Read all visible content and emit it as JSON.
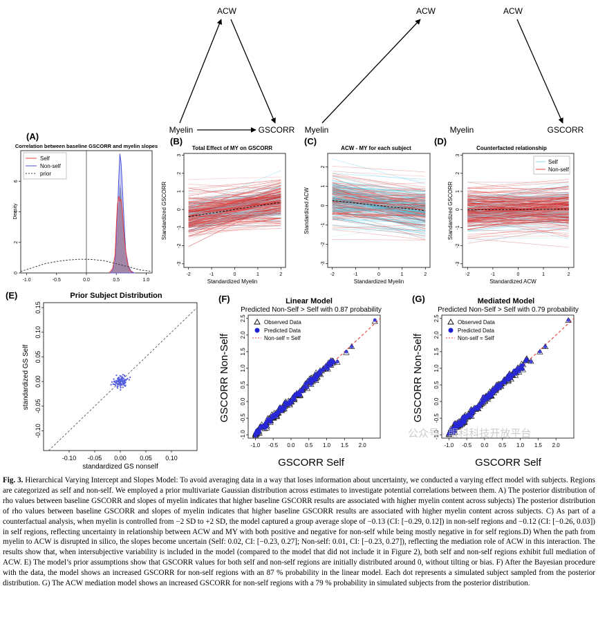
{
  "figure": {
    "top_diagrams": [
      {
        "top": "ACW",
        "left": "Myelin",
        "right": "GSCORR"
      },
      {
        "top": "ACW",
        "left": "Myelin"
      },
      {
        "top": "ACW",
        "left": "Myelin",
        "right": "GSCORR"
      }
    ],
    "watermark": "公众号 · 眼科科技开放平台"
  },
  "chart_data": [
    {
      "id": "A",
      "type": "area",
      "panel_label": "(A)",
      "title": "Correlation between baseline GSCORR and myelin slopes",
      "xlabel": "",
      "ylabel": "Density",
      "xlim": [
        -1.1,
        1.1
      ],
      "ylim": [
        0,
        8
      ],
      "x_ticks": [
        "-1.0",
        "-0.5",
        "0.0",
        "0.5",
        "1.0"
      ],
      "y_ticks": [
        "0",
        "2",
        "4",
        "6"
      ],
      "legend": [
        "Self",
        "Non-self",
        "prior"
      ],
      "colors": {
        "Self": "#e8403c",
        "Non-self": "#4a52d8",
        "prior": "#333333"
      },
      "series": [
        {
          "name": "Self",
          "x": [
            0.38,
            0.44,
            0.48,
            0.5,
            0.52,
            0.54,
            0.56,
            0.58,
            0.6,
            0.62,
            0.64,
            0.68,
            0.72,
            0.78
          ],
          "y": [
            0,
            0.3,
            1.2,
            3.0,
            4.5,
            5.0,
            4.7,
            4.8,
            4.2,
            3.0,
            2.0,
            0.8,
            0.2,
            0
          ]
        },
        {
          "name": "Non-self",
          "x": [
            0.4,
            0.44,
            0.48,
            0.5,
            0.52,
            0.54,
            0.56,
            0.58,
            0.6,
            0.62,
            0.64,
            0.66,
            0.7,
            0.74,
            0.8
          ],
          "y": [
            0,
            0.2,
            0.8,
            2.0,
            3.8,
            6.0,
            7.8,
            7.2,
            5.8,
            4.2,
            2.6,
            1.4,
            0.5,
            0.15,
            0
          ]
        },
        {
          "name": "prior",
          "x": [
            -1.1,
            -0.9,
            -0.7,
            -0.5,
            -0.3,
            -0.1,
            0.1,
            0.3,
            0.5,
            0.7,
            0.9,
            1.1
          ],
          "y": [
            0.1,
            0.35,
            0.6,
            0.75,
            0.85,
            0.9,
            0.88,
            0.8,
            0.6,
            0.4,
            0.2,
            0.1
          ]
        }
      ]
    },
    {
      "id": "B",
      "type": "line",
      "panel_label": "(B)",
      "title": "Total Effect of MY on GSCORR",
      "xlabel": "Standardized Myelin",
      "ylabel": "Standardized GSCORR",
      "xlim": [
        -2.2,
        2.2
      ],
      "ylim": [
        -3.2,
        3.1
      ],
      "x_ticks": [
        "-2",
        "-1",
        "0",
        "1",
        "2"
      ],
      "y_ticks": [
        "-3",
        "-2",
        "-1",
        "0",
        "1",
        "2",
        "3"
      ],
      "mean_intercept": 0.0,
      "mean_slope": 0.2,
      "intercept_sd": 0.45,
      "slope_sd": 0.14
    },
    {
      "id": "C",
      "type": "line",
      "panel_label": "(C)",
      "title": "ACW - MY for each subject",
      "xlabel": "Standardized Myelin",
      "ylabel": "Standardized ACW",
      "xlim": [
        -2.2,
        2.2
      ],
      "ylim": [
        -3.2,
        2.7
      ],
      "x_ticks": [
        "-2",
        "-1",
        "0",
        "1",
        "2"
      ],
      "y_ticks": [
        "-3",
        "-2",
        "-1",
        "0",
        "1",
        "2"
      ],
      "mean_intercept": 0.0,
      "mean_slope": -0.13,
      "intercept_sd": 0.45,
      "slope_sd": 0.12
    },
    {
      "id": "D",
      "type": "line",
      "panel_label": "(D)",
      "title": "Counterfacted relationship",
      "xlabel": "Standardized ACW",
      "ylabel": "Standardized GSCORR",
      "xlim": [
        -2.2,
        2.2
      ],
      "ylim": [
        -3.2,
        3.1
      ],
      "x_ticks": [
        "-2",
        "-1",
        "0",
        "1",
        "2"
      ],
      "y_ticks": [
        "-3",
        "-2",
        "-1",
        "0",
        "1",
        "2",
        "3"
      ],
      "legend": [
        "Self",
        "Non-self"
      ],
      "mean_intercept": 0.0,
      "mean_slope": 0.01,
      "intercept_sd": 0.45,
      "slope_sd": 0.12
    },
    {
      "id": "E",
      "type": "scatter",
      "panel_label": "(E)",
      "title": "Prior Subject Distribution",
      "xlabel": "standardized GS nonself",
      "ylabel": "standardized GS Self",
      "xlim": [
        -0.15,
        0.15
      ],
      "ylim": [
        -0.14,
        0.16
      ],
      "x_ticks": [
        "-0.10",
        "-0.05",
        "0.00",
        "0.05",
        "0.10"
      ],
      "y_ticks": [
        "-0.10",
        "-0.05",
        "0.00",
        "0.05",
        "0.10",
        "0.15"
      ],
      "points_center": [
        0.0,
        0.0
      ],
      "points_sd": [
        0.007,
        0.006
      ],
      "n_points": 120
    },
    {
      "id": "F",
      "type": "scatter",
      "panel_label": "(F)",
      "title": "Linear Model",
      "subtitle": "Predicted Non-Self > Self with 0.87  probability",
      "xlabel": "GSCORR Self",
      "ylabel": "GSCORR Non-Self",
      "xlim": [
        -1.2,
        2.5
      ],
      "ylim": [
        -1.1,
        2.6
      ],
      "x_ticks": [
        "-1.0",
        "-0.5",
        "0.0",
        "0.5",
        "1.0",
        "1.5",
        "2.0"
      ],
      "y_ticks": [
        "-1.0",
        "-0.5",
        "0.0",
        "0.5",
        "1.0",
        "1.5",
        "2.0",
        "2.5"
      ],
      "legend": [
        "Observed Data",
        "Predicted Data",
        "Non-self = Self"
      ],
      "outliers": [
        [
          2.35,
          2.45
        ],
        [
          1.3,
          1.2
        ],
        [
          1.7,
          1.65
        ],
        [
          1.55,
          1.5
        ]
      ]
    },
    {
      "id": "G",
      "type": "scatter",
      "panel_label": "(G)",
      "title": "Mediated Model",
      "subtitle": "Predicted Non-Self > Self with 0.79  probability",
      "xlabel": "GSCORR Self",
      "ylabel": "GSCORR Non-Self",
      "xlim": [
        -1.2,
        2.5
      ],
      "ylim": [
        -1.1,
        2.6
      ],
      "x_ticks": [
        "-1.0",
        "-0.5",
        "0.0",
        "0.5",
        "1.0",
        "1.5",
        "2.0"
      ],
      "y_ticks": [
        "-1.0",
        "-0.5",
        "0.0",
        "0.5",
        "1.0",
        "1.5",
        "2.0",
        "2.5"
      ],
      "legend": [
        "Observed Data",
        "Predicted Data",
        "Non-self = Self"
      ],
      "outliers": [
        [
          2.35,
          2.45
        ],
        [
          1.3,
          1.2
        ],
        [
          1.7,
          1.65
        ],
        [
          1.55,
          1.5
        ]
      ]
    }
  ],
  "caption": {
    "label": "Fig. 3.",
    "text": "Hierarchical Varying Intercept and Slopes Model: To avoid averaging data in a way that loses information about uncertainty, we conducted a varying effect model with subjects. Regions are categorized as self and non-self. We employed a prior multivariate Gaussian distribution across estimates to investigate potential correlations between them. A) The posterior distribution of rho values between baseline GSCORR and slopes of myelin indicates that higher baseline GSCORR results are associated with higher myelin content across subjects) The posterior distribution of rho values between baseline GSCORR and slopes of myelin indicates that higher baseline GSCORR results are associated with higher myelin content across subjects. C) As part of a counterfactual analysis, when myelin is controlled from −2 SD to +2 SD, the model captured a group average slope of −0.13 (CI: [−0.29, 0.12]) in non-self regions and −0.12 (CI: [−0.26, 0.03]) in self regions, reflecting uncertainty in relationship between ACW and MY with both positive and negative for non-self while being mostly negative in for self regions.D) When the path from myelin to ACW is disrupted in silico, the slopes become uncertain (Self: 0.02, CI: [−0.23, 0.27]; Non-self: 0.01, CI: [−0.23, 0.27]), reflecting the mediation role of ACW in this interaction. The results show that, when intersubjective variability is included in the model (compared to the model that did not include it in Figure 2), both self and non-self regions exhibit full mediation of ACW. E) The model’s prior assumptions show that GSCORR values for both self and non-self regions are initially distributed around 0, without tilting or bias. F) After the Bayesian procedure with the data, the model shows an increased GSCORR for non-self regions with an 87 % probability in the linear model. Each dot represents a simulated subject sampled from the posterior distribution. G) The ACW mediation model shows an increased GSCORR for non-self regions with a 79 % probability in simulated subjects from the posterior distribution."
  }
}
